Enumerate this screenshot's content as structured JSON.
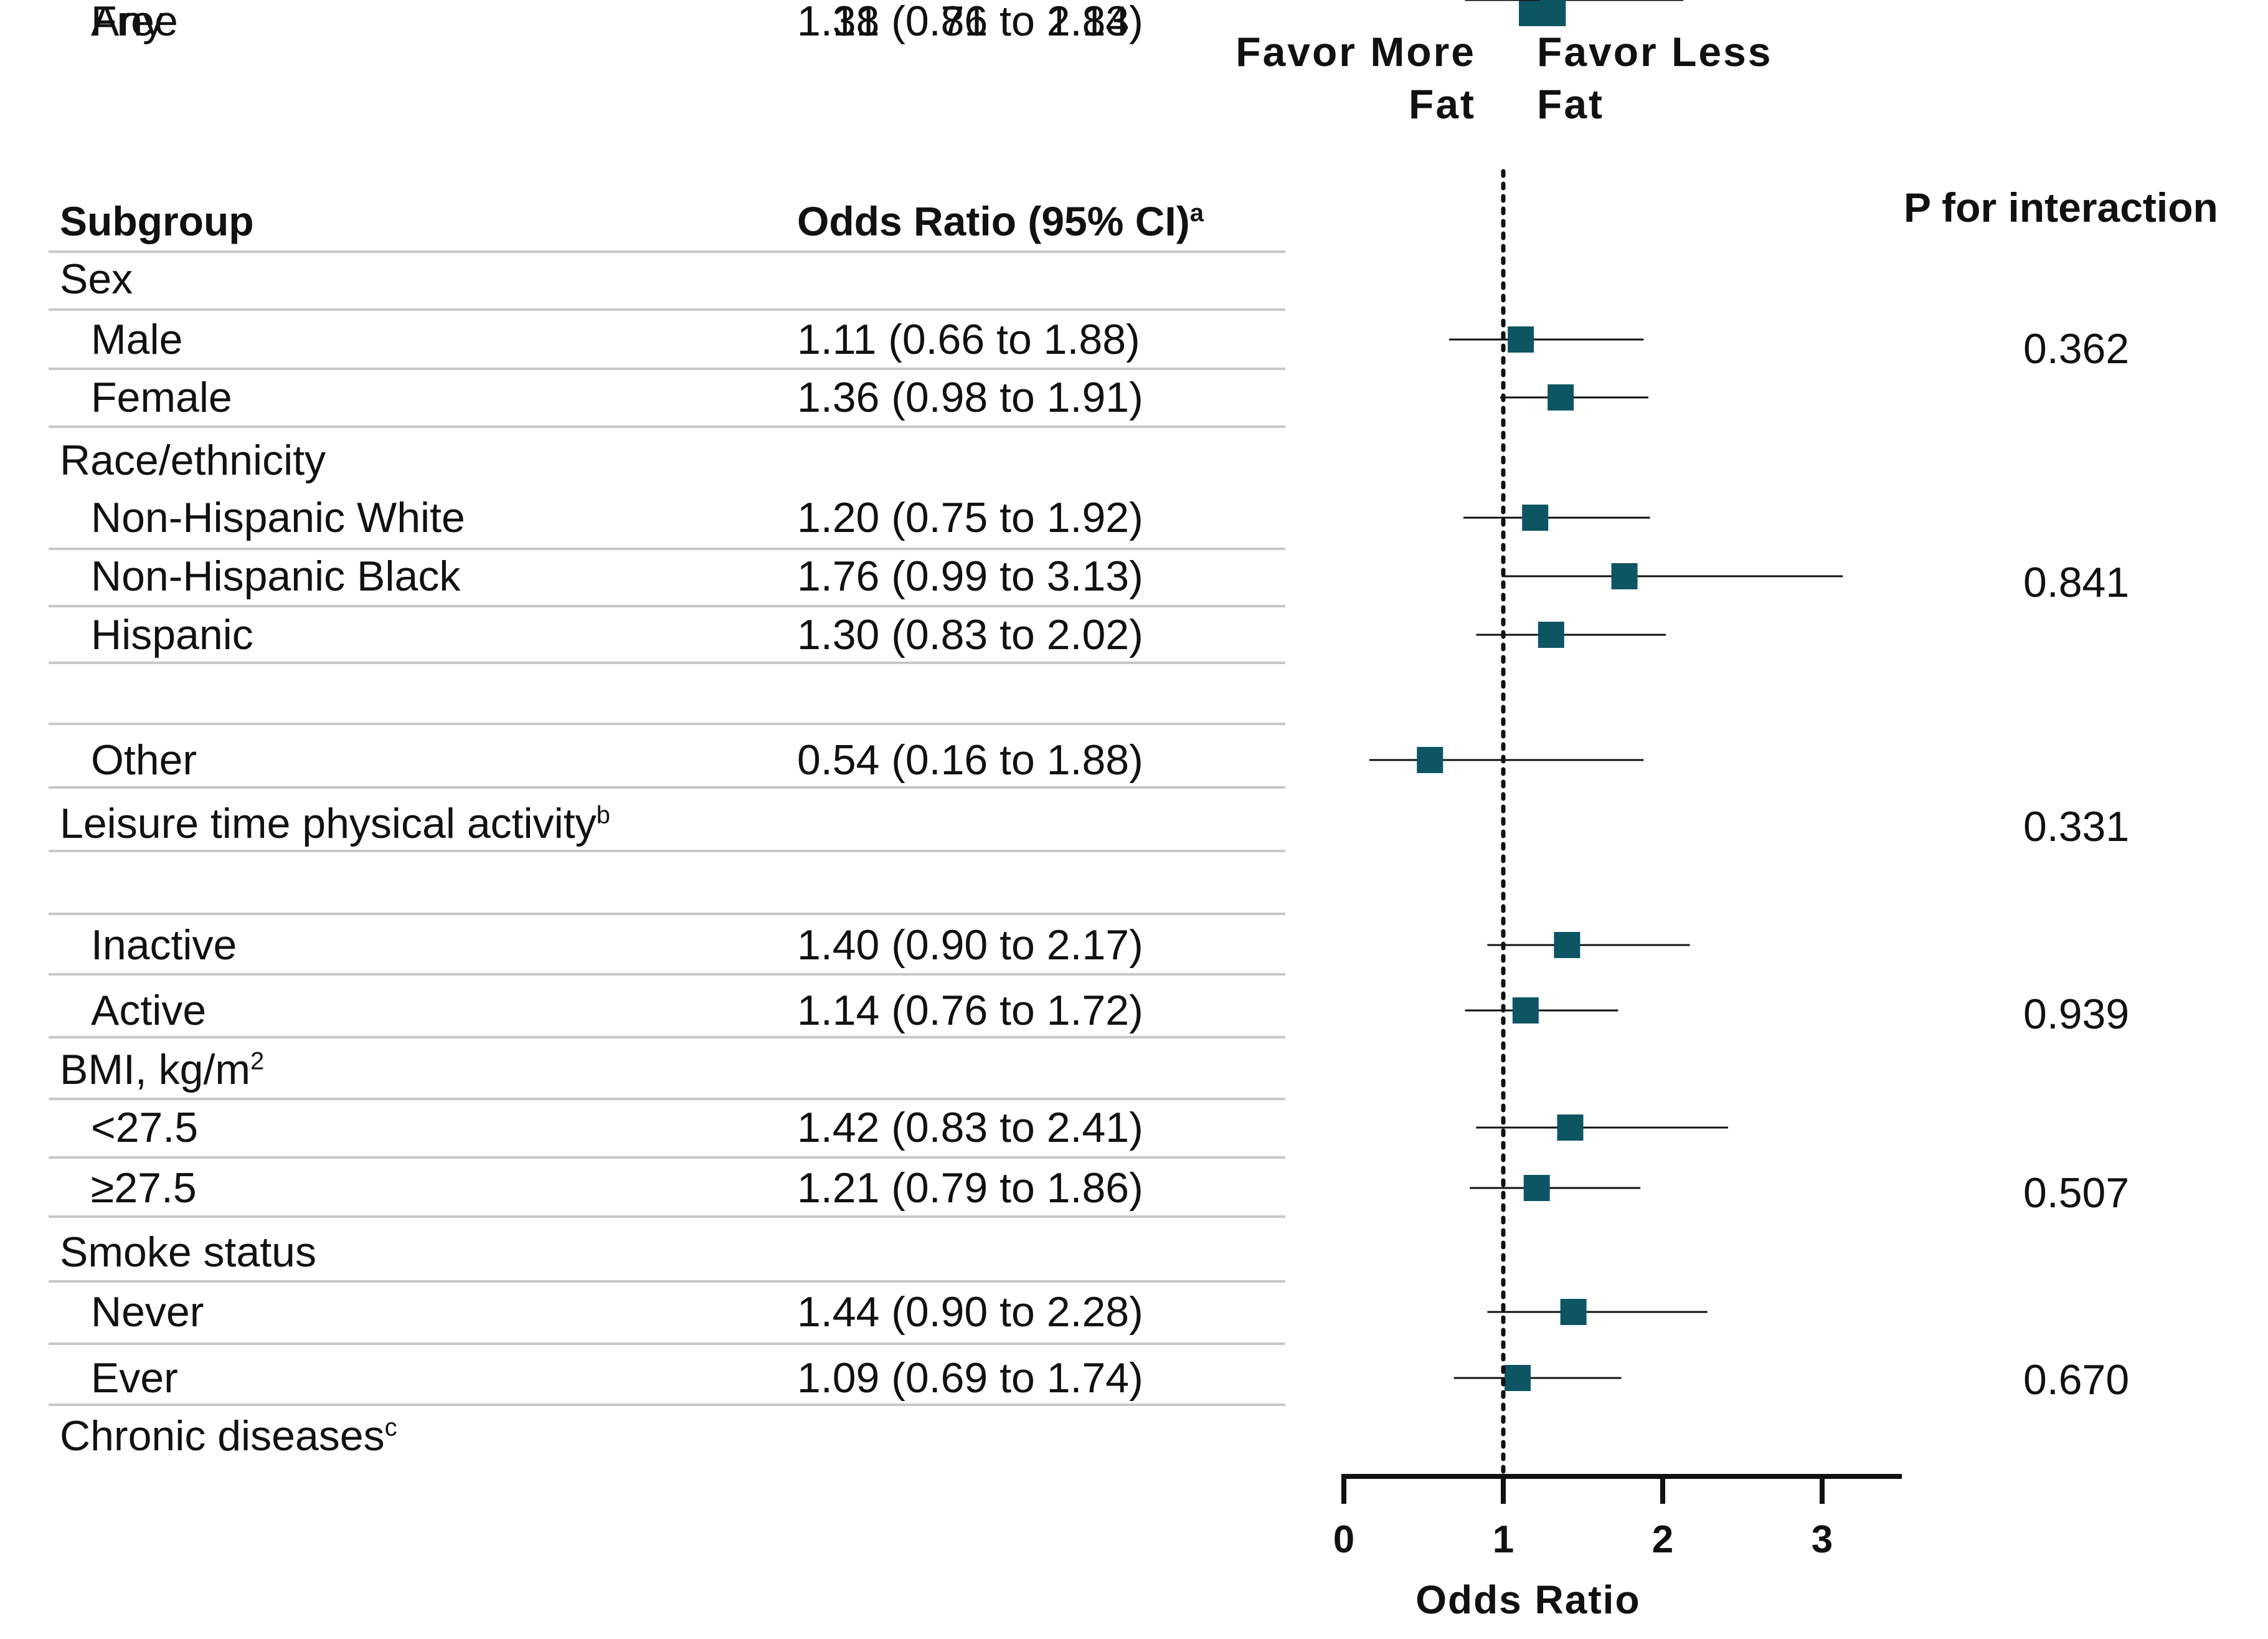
{
  "headers": {
    "subgroup": "Subgroup",
    "odds_ratio": "Odds Ratio (95% CI)",
    "odds_ratio_sup": "a",
    "p_interaction": "P for interaction"
  },
  "favor": {
    "left_line1": "Favor More",
    "left_line2": "Fat",
    "right_line1": "Favor Less",
    "right_line2": "Fat"
  },
  "rows": [
    {
      "label": "Sex",
      "sup": "",
      "group": true
    },
    {
      "label": "Male",
      "ci_text": "1.11 (0.66 to 1.88)",
      "est": 1.11,
      "lo": 0.66,
      "hi": 1.88
    },
    {
      "label": "Female",
      "ci_text": "1.36 (0.98 to 1.91)",
      "est": 1.36,
      "lo": 0.98,
      "hi": 1.91
    },
    {
      "label": "Race/ethnicity",
      "sup": "",
      "group": true
    },
    {
      "label": "Non-Hispanic White",
      "ci_text": "1.20 (0.75 to 1.92)",
      "est": 1.2,
      "lo": 0.75,
      "hi": 1.92
    },
    {
      "label": "Non-Hispanic Black",
      "ci_text": "1.76 (0.99 to 3.13)",
      "est": 1.76,
      "lo": 0.99,
      "hi": 3.13
    },
    {
      "label": "Hispanic",
      "ci_text": "1.30 (0.83 to 2.02)",
      "est": 1.3,
      "lo": 0.83,
      "hi": 2.02
    },
    {
      "label": "Other",
      "ci_text": "0.54 (0.16 to 1.88)",
      "est": 0.54,
      "lo": 0.16,
      "hi": 1.88
    },
    {
      "label": "Leisure time physical activity",
      "sup": "b",
      "group": true
    },
    {
      "label": "Inactive",
      "ci_text": "1.40 (0.90 to 2.17)",
      "est": 1.4,
      "lo": 0.9,
      "hi": 2.17
    },
    {
      "label": "Active",
      "ci_text": "1.14 (0.76 to 1.72)",
      "est": 1.14,
      "lo": 0.76,
      "hi": 1.72
    },
    {
      "label": "BMI, kg/m",
      "sup": "2",
      "group": true
    },
    {
      "label": "<27.5",
      "ci_text": "1.42 (0.83 to 2.41)",
      "est": 1.42,
      "lo": 0.83,
      "hi": 2.41
    },
    {
      "label": "≥27.5",
      "ci_text": "1.21 (0.79 to 1.86)",
      "est": 1.21,
      "lo": 0.79,
      "hi": 1.86
    },
    {
      "label": "Smoke status",
      "sup": "",
      "group": true
    },
    {
      "label": "Never",
      "ci_text": "1.44 (0.90 to 2.28)",
      "est": 1.44,
      "lo": 0.9,
      "hi": 2.28
    },
    {
      "label": "Ever",
      "ci_text": "1.09 (0.69 to 1.74)",
      "est": 1.09,
      "lo": 0.69,
      "hi": 1.74
    },
    {
      "label": "Chronic diseases",
      "sup": "c",
      "group": true
    },
    {
      "label": "Free",
      "ci_text": "1.18 (0.76 to 1.84)",
      "est": 1.18,
      "lo": 0.76,
      "hi": 1.84
    },
    {
      "label": "Any",
      "ci_text": "1.31 (0.81 to 2.13)",
      "est": 1.31,
      "lo": 0.81,
      "hi": 2.13
    }
  ],
  "p_values": [
    "0.362",
    "0.841",
    "0.331",
    "0.939",
    "0.507",
    "0.670"
  ],
  "colors": {
    "marker": "#0e5563",
    "line": "#111111",
    "rule": "#c8c8c8"
  },
  "chart_data": {
    "type": "scatter",
    "subtype": "forest-plot",
    "xlabel": "Odds Ratio",
    "xlim": [
      0,
      3.5
    ],
    "xticks": [
      0,
      1,
      2,
      3
    ],
    "reference_line": 1,
    "reference_style": "dotted",
    "categories": [
      "Male",
      "Female",
      "Non-Hispanic White",
      "Non-Hispanic Black",
      "Hispanic",
      "Other",
      "Inactive",
      "Active",
      "<27.5",
      "≥27.5",
      "Never",
      "Ever",
      "Free",
      "Any"
    ],
    "estimates": [
      1.11,
      1.36,
      1.2,
      1.76,
      1.3,
      0.54,
      1.4,
      1.14,
      1.42,
      1.21,
      1.44,
      1.09,
      1.18,
      1.31
    ],
    "ci_lower": [
      0.66,
      0.98,
      0.75,
      0.99,
      0.83,
      0.16,
      0.9,
      0.76,
      0.83,
      0.79,
      0.9,
      0.69,
      0.76,
      0.81
    ],
    "ci_upper": [
      1.88,
      1.91,
      1.92,
      3.13,
      2.02,
      1.88,
      2.17,
      1.72,
      2.41,
      1.86,
      2.28,
      1.74,
      1.84,
      2.13
    ]
  }
}
